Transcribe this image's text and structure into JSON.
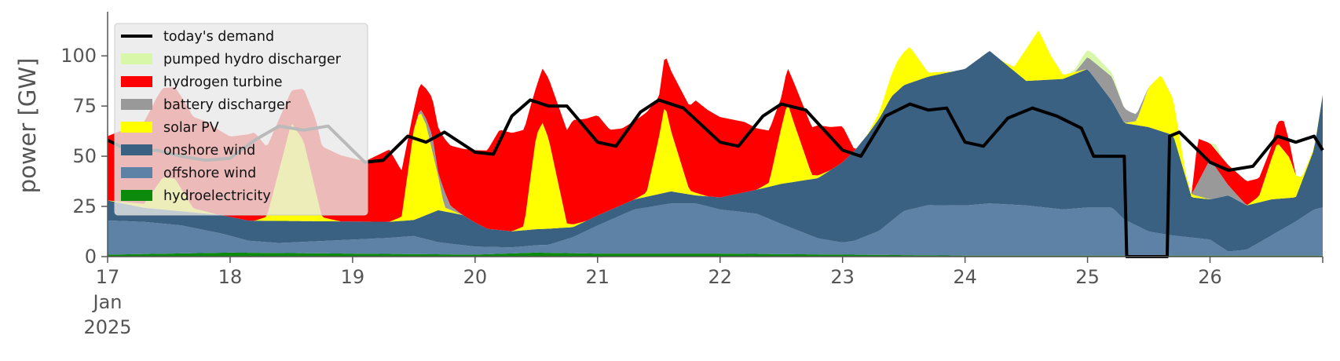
{
  "chart_data": {
    "type": "area",
    "title": "",
    "xlabel": "",
    "ylabel": "power [GW]",
    "xlim": [
      0,
      9.92
    ],
    "ylim": [
      0,
      120
    ],
    "x_ticks": [
      {
        "x": 0,
        "label": "17",
        "sub1": "Jan",
        "sub2": "2025"
      },
      {
        "x": 1,
        "label": "18"
      },
      {
        "x": 2,
        "label": "19"
      },
      {
        "x": 3,
        "label": "20"
      },
      {
        "x": 4,
        "label": "21"
      },
      {
        "x": 5,
        "label": "22"
      },
      {
        "x": 6,
        "label": "23"
      },
      {
        "x": 7,
        "label": "24"
      },
      {
        "x": 8,
        "label": "25"
      },
      {
        "x": 9,
        "label": "26"
      }
    ],
    "y_ticks": [
      0,
      25,
      50,
      75,
      100
    ],
    "grid": false,
    "legend_position": "top-left",
    "legend": [
      {
        "label": "today's demand",
        "type": "line",
        "color": "#000000"
      },
      {
        "label": "pumped hydro discharger",
        "type": "patch",
        "color": "#d9f7a8"
      },
      {
        "label": "hydrogen turbine",
        "type": "patch",
        "color": "#ff0000"
      },
      {
        "label": "battery discharger",
        "type": "patch",
        "color": "#999999"
      },
      {
        "label": "solar PV",
        "type": "patch",
        "color": "#ffff00"
      },
      {
        "label": "onshore wind",
        "type": "patch",
        "color": "#3b6182"
      },
      {
        "label": "offshore wind",
        "type": "patch",
        "color": "#5d82a5"
      },
      {
        "label": "hydroelectricity",
        "type": "patch",
        "color": "#0b8a0b"
      }
    ],
    "stack_order": [
      "hydroelectricity",
      "offshore wind",
      "onshore wind",
      "solar PV",
      "battery discharger",
      "hydrogen turbine",
      "pumped hydro discharger"
    ],
    "series": [
      {
        "name": "hydroelectricity",
        "color": "#0b8a0b",
        "points": [
          [
            0,
            1
          ],
          [
            1,
            2
          ],
          [
            2,
            1.5
          ],
          [
            3,
            1
          ],
          [
            3.5,
            2
          ],
          [
            4,
            1.5
          ],
          [
            4.7,
            1.5
          ],
          [
            5,
            1.5
          ],
          [
            6,
            1
          ],
          [
            7,
            0.5
          ],
          [
            8,
            0.5
          ],
          [
            9,
            0.5
          ],
          [
            9.92,
            0.5
          ]
        ]
      },
      {
        "name": "offshore wind",
        "color": "#5d82a5",
        "points": [
          [
            0,
            17
          ],
          [
            0.3,
            16
          ],
          [
            0.6,
            14
          ],
          [
            0.9,
            10
          ],
          [
            1.15,
            6
          ],
          [
            1.4,
            5
          ],
          [
            1.7,
            6
          ],
          [
            2,
            7
          ],
          [
            2.3,
            8
          ],
          [
            2.5,
            9
          ],
          [
            2.7,
            6
          ],
          [
            3,
            4
          ],
          [
            3.3,
            3
          ],
          [
            3.6,
            4
          ],
          [
            3.8,
            8
          ],
          [
            4,
            14
          ],
          [
            4.3,
            22
          ],
          [
            4.6,
            25
          ],
          [
            4.8,
            25
          ],
          [
            5,
            22
          ],
          [
            5.3,
            20
          ],
          [
            5.5,
            15
          ],
          [
            5.8,
            8
          ],
          [
            6,
            6
          ],
          [
            6.1,
            7
          ],
          [
            6.3,
            12
          ],
          [
            6.5,
            22
          ],
          [
            6.7,
            25
          ],
          [
            7,
            25
          ],
          [
            7.2,
            26
          ],
          [
            7.5,
            25
          ],
          [
            7.8,
            23
          ],
          [
            8,
            24
          ],
          [
            8.2,
            24
          ],
          [
            8.3,
            18
          ],
          [
            8.5,
            12
          ],
          [
            8.7,
            10
          ],
          [
            9,
            8
          ],
          [
            9.15,
            2
          ],
          [
            9.3,
            3
          ],
          [
            9.5,
            10
          ],
          [
            9.7,
            17
          ],
          [
            9.85,
            23
          ],
          [
            9.92,
            24
          ]
        ]
      },
      {
        "name": "onshore wind",
        "color": "#3b6182",
        "points": [
          [
            0,
            10
          ],
          [
            0.3,
            7
          ],
          [
            0.6,
            7
          ],
          [
            0.9,
            9
          ],
          [
            1.15,
            10
          ],
          [
            1.4,
            11
          ],
          [
            1.7,
            10
          ],
          [
            2,
            9
          ],
          [
            2.3,
            8
          ],
          [
            2.5,
            8
          ],
          [
            2.7,
            16
          ],
          [
            2.9,
            15
          ],
          [
            3.1,
            9
          ],
          [
            3.3,
            8
          ],
          [
            3.6,
            8
          ],
          [
            3.8,
            5
          ],
          [
            4,
            5
          ],
          [
            4.3,
            5
          ],
          [
            4.6,
            6
          ],
          [
            4.8,
            4
          ],
          [
            5,
            6
          ],
          [
            5.3,
            12
          ],
          [
            5.5,
            20
          ],
          [
            5.8,
            30
          ],
          [
            6,
            40
          ],
          [
            6.2,
            50
          ],
          [
            6.4,
            62
          ],
          [
            6.7,
            64
          ],
          [
            7,
            68
          ],
          [
            7.2,
            76
          ],
          [
            7.5,
            62
          ],
          [
            7.8,
            65
          ],
          [
            8,
            69
          ],
          [
            8.2,
            53
          ],
          [
            8.3,
            48
          ],
          [
            8.5,
            52
          ],
          [
            8.7,
            50
          ],
          [
            8.85,
            20
          ],
          [
            9,
            20
          ],
          [
            9.15,
            28
          ],
          [
            9.3,
            22
          ],
          [
            9.5,
            18
          ],
          [
            9.7,
            12
          ],
          [
            9.85,
            30
          ],
          [
            9.92,
            56
          ]
        ]
      },
      {
        "name": "solar PV",
        "color": "#ffff00",
        "points": [
          [
            0,
            0
          ],
          [
            0.3,
            2
          ],
          [
            0.45,
            16
          ],
          [
            0.55,
            16
          ],
          [
            0.7,
            2
          ],
          [
            0.9,
            0
          ],
          [
            1.2,
            0
          ],
          [
            1.3,
            2
          ],
          [
            1.45,
            37
          ],
          [
            1.5,
            49
          ],
          [
            1.6,
            40
          ],
          [
            1.75,
            2
          ],
          [
            1.9,
            0
          ],
          [
            2.3,
            0
          ],
          [
            2.4,
            2
          ],
          [
            2.5,
            45
          ],
          [
            2.55,
            53
          ],
          [
            2.6,
            45
          ],
          [
            2.75,
            2
          ],
          [
            2.9,
            0
          ],
          [
            3.3,
            0
          ],
          [
            3.4,
            2
          ],
          [
            3.45,
            25
          ],
          [
            3.5,
            47
          ],
          [
            3.55,
            53
          ],
          [
            3.6,
            45
          ],
          [
            3.75,
            2
          ],
          [
            3.9,
            0
          ],
          [
            4.3,
            0
          ],
          [
            4.4,
            2
          ],
          [
            4.5,
            28
          ],
          [
            4.55,
            44
          ],
          [
            4.6,
            30
          ],
          [
            4.75,
            2
          ],
          [
            4.9,
            0
          ],
          [
            5.3,
            0
          ],
          [
            5.4,
            2
          ],
          [
            5.5,
            28
          ],
          [
            5.55,
            40
          ],
          [
            5.6,
            30
          ],
          [
            5.75,
            2
          ],
          [
            5.9,
            0
          ],
          [
            6.2,
            0
          ],
          [
            6.3,
            3
          ],
          [
            6.45,
            15
          ],
          [
            6.55,
            18
          ],
          [
            6.7,
            2
          ],
          [
            6.9,
            0
          ],
          [
            7.3,
            0
          ],
          [
            7.4,
            2
          ],
          [
            7.5,
            16
          ],
          [
            7.6,
            25
          ],
          [
            7.7,
            12
          ],
          [
            7.8,
            2
          ],
          [
            8,
            0
          ],
          [
            8.3,
            0
          ],
          [
            8.4,
            2
          ],
          [
            8.5,
            20
          ],
          [
            8.6,
            28
          ],
          [
            8.7,
            18
          ],
          [
            8.8,
            2
          ],
          [
            9,
            0
          ],
          [
            9.3,
            0
          ],
          [
            9.4,
            3
          ],
          [
            9.5,
            20
          ],
          [
            9.55,
            28
          ],
          [
            9.65,
            20
          ],
          [
            9.75,
            2
          ],
          [
            9.92,
            0
          ]
        ]
      },
      {
        "name": "battery discharger",
        "color": "#999999",
        "points": [
          [
            0,
            0
          ],
          [
            2.5,
            0
          ],
          [
            2.6,
            3
          ],
          [
            2.65,
            8
          ],
          [
            2.7,
            2
          ],
          [
            2.75,
            8
          ],
          [
            2.8,
            2
          ],
          [
            2.9,
            0
          ],
          [
            7.9,
            0
          ],
          [
            8,
            6
          ],
          [
            8.2,
            12
          ],
          [
            8.35,
            5
          ],
          [
            8.5,
            0
          ],
          [
            8.85,
            0
          ],
          [
            9,
            20
          ],
          [
            9.15,
            5
          ],
          [
            9.3,
            0
          ],
          [
            9.92,
            0
          ]
        ]
      },
      {
        "name": "hydrogen turbine",
        "color": "#ff0000",
        "points": [
          [
            0,
            32
          ],
          [
            0.2,
            38
          ],
          [
            0.4,
            44
          ],
          [
            0.6,
            46
          ],
          [
            0.8,
            45
          ],
          [
            1,
            40
          ],
          [
            1.2,
            44
          ],
          [
            1.5,
            16
          ],
          [
            1.7,
            36
          ],
          [
            1.9,
            33
          ],
          [
            2.1,
            30
          ],
          [
            2.3,
            36
          ],
          [
            2.5,
            10
          ],
          [
            2.6,
            15
          ],
          [
            2.8,
            30
          ],
          [
            3.1,
            39
          ],
          [
            3.2,
            50
          ],
          [
            3.4,
            48
          ],
          [
            3.5,
            24
          ],
          [
            3.6,
            30
          ],
          [
            3.8,
            52
          ],
          [
            4,
            50
          ],
          [
            4.1,
            40
          ],
          [
            4.2,
            38
          ],
          [
            4.4,
            40
          ],
          [
            4.5,
            20
          ],
          [
            4.6,
            30
          ],
          [
            4.8,
            46
          ],
          [
            5,
            40
          ],
          [
            5.2,
            35
          ],
          [
            5.4,
            26
          ],
          [
            5.5,
            15
          ],
          [
            5.6,
            20
          ],
          [
            5.8,
            25
          ],
          [
            6,
            18
          ],
          [
            6.1,
            0
          ],
          [
            8.85,
            0
          ],
          [
            8.9,
            22
          ],
          [
            9,
            8
          ],
          [
            9.15,
            10
          ],
          [
            9.3,
            12
          ],
          [
            9.5,
            6
          ],
          [
            9.6,
            15
          ],
          [
            9.7,
            0
          ],
          [
            9.92,
            0
          ]
        ]
      },
      {
        "name": "pumped hydro discharger",
        "color": "#d9f7a8",
        "points": [
          [
            0,
            0
          ],
          [
            7.85,
            0
          ],
          [
            7.95,
            3
          ],
          [
            8.05,
            4
          ],
          [
            8.2,
            2
          ],
          [
            8.3,
            0
          ],
          [
            9,
            0
          ],
          [
            9.05,
            3
          ],
          [
            9.1,
            0
          ],
          [
            9.92,
            0
          ]
        ]
      },
      {
        "name": "today's demand",
        "color": "#000000",
        "points": [
          [
            0,
            58
          ],
          [
            0.2,
            52
          ],
          [
            0.4,
            53
          ],
          [
            0.6,
            50
          ],
          [
            0.8,
            48
          ],
          [
            1,
            49
          ],
          [
            1.2,
            58
          ],
          [
            1.4,
            65
          ],
          [
            1.6,
            63
          ],
          [
            1.8,
            65
          ],
          [
            2,
            53
          ],
          [
            2.1,
            47
          ],
          [
            2.25,
            48
          ],
          [
            2.45,
            60
          ],
          [
            2.6,
            57
          ],
          [
            2.75,
            62
          ],
          [
            3,
            52
          ],
          [
            3.15,
            51
          ],
          [
            3.3,
            70
          ],
          [
            3.45,
            78
          ],
          [
            3.6,
            75
          ],
          [
            3.75,
            75
          ],
          [
            4,
            57
          ],
          [
            4.15,
            55
          ],
          [
            4.35,
            72
          ],
          [
            4.5,
            78
          ],
          [
            4.7,
            74
          ],
          [
            5,
            57
          ],
          [
            5.15,
            55
          ],
          [
            5.35,
            70
          ],
          [
            5.5,
            76
          ],
          [
            5.7,
            73
          ],
          [
            6,
            53
          ],
          [
            6.15,
            50
          ],
          [
            6.35,
            70
          ],
          [
            6.55,
            76
          ],
          [
            6.7,
            73
          ],
          [
            6.85,
            74
          ],
          [
            7,
            57
          ],
          [
            7.15,
            55
          ],
          [
            7.35,
            69
          ],
          [
            7.55,
            74
          ],
          [
            7.75,
            70
          ],
          [
            7.95,
            64
          ],
          [
            8.05,
            50
          ],
          [
            8.3,
            50
          ],
          [
            8.32,
            0
          ],
          [
            8.65,
            0
          ],
          [
            8.67,
            60
          ],
          [
            8.75,
            62
          ],
          [
            9,
            47
          ],
          [
            9.15,
            43
          ],
          [
            9.35,
            45
          ],
          [
            9.55,
            60
          ],
          [
            9.7,
            57
          ],
          [
            9.85,
            60
          ],
          [
            9.92,
            53
          ]
        ]
      }
    ]
  }
}
